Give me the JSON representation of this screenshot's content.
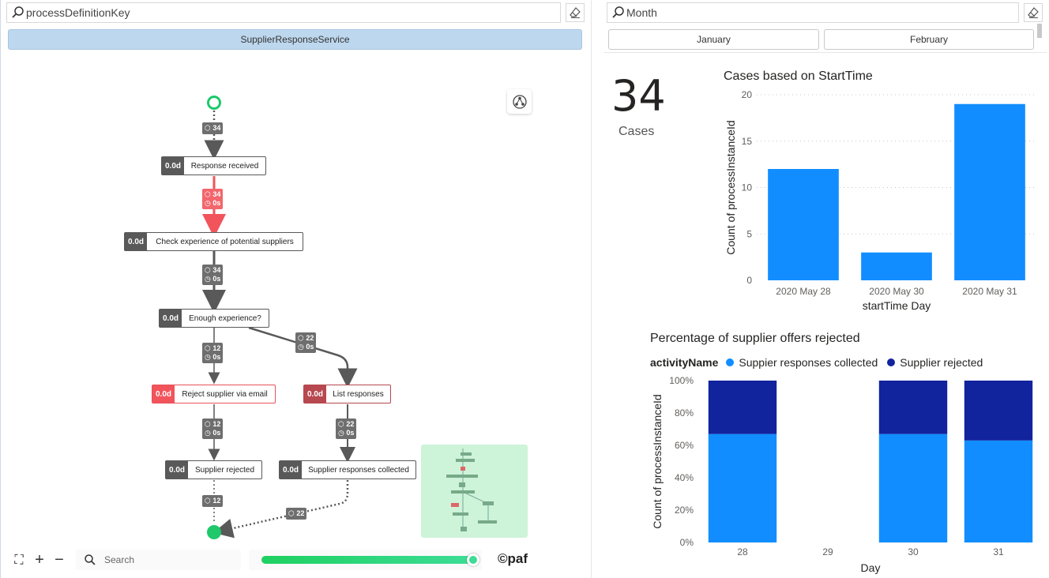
{
  "left_slicer": {
    "search_placeholder": "processDefinitionKey",
    "selected_item": "SupplierResponseService"
  },
  "right_slicer": {
    "search_placeholder": "Month",
    "items": [
      "January",
      "February"
    ]
  },
  "process_map": {
    "nodes": [
      {
        "duration": "0.0d",
        "label": "Response received"
      },
      {
        "duration": "0.0d",
        "label": "Check experience of potential suppliers"
      },
      {
        "duration": "0.0d",
        "label": "Enough experience?"
      },
      {
        "duration": "0.0d",
        "label": "Reject supplier via email"
      },
      {
        "duration": "0.0d",
        "label": "List responses"
      },
      {
        "duration": "0.0d",
        "label": "Supplier rejected"
      },
      {
        "duration": "0.0d",
        "label": "Supplier responses collected"
      }
    ],
    "edges": [
      {
        "count": "34"
      },
      {
        "count": "34",
        "time": "0s"
      },
      {
        "count": "34",
        "time": "0s"
      },
      {
        "count": "12",
        "time": "0s"
      },
      {
        "count": "22",
        "time": "0s"
      },
      {
        "count": "12",
        "time": "0s"
      },
      {
        "count": "22",
        "time": "0s"
      },
      {
        "count": "12"
      },
      {
        "count": "22"
      }
    ],
    "search_placeholder": "Search",
    "slider_value": 1.0,
    "brand": "©paf",
    "colors": {
      "start": "#1ec86b",
      "highlight": "#f2545b",
      "neutral": "#595959"
    }
  },
  "kpi": {
    "value": "34",
    "label": "Cases"
  },
  "chart_data": [
    {
      "type": "bar",
      "title": "Cases based on StartTime",
      "xlabel": "startTime Day",
      "ylabel": "Count of processInstanceId",
      "categories": [
        "2020 May 28",
        "2020 May 30",
        "2020 May 31"
      ],
      "values": [
        12,
        3,
        19
      ],
      "ylim": [
        0,
        20
      ],
      "yticks": [
        "0",
        "5",
        "10",
        "15",
        "20"
      ],
      "grid": true,
      "color": "#118dff"
    },
    {
      "type": "bar",
      "stacked": "100%",
      "title": "Percentage of supplier offers rejected",
      "legend_title": "activityName",
      "xlabel": "Day",
      "ylabel": "Count of processInstanceId",
      "categories": [
        "28",
        "29",
        "30",
        "31"
      ],
      "series": [
        {
          "name": "Suppier responses collected",
          "color": "#118dff",
          "values": [
            0.67,
            0,
            0.67,
            0.63
          ]
        },
        {
          "name": "Supplier rejected",
          "color": "#12239e",
          "values": [
            0.33,
            0,
            0.33,
            0.37
          ]
        }
      ],
      "yticks": [
        "0%",
        "20%",
        "40%",
        "60%",
        "80%",
        "100%"
      ],
      "ylim": [
        0,
        1
      ]
    }
  ]
}
